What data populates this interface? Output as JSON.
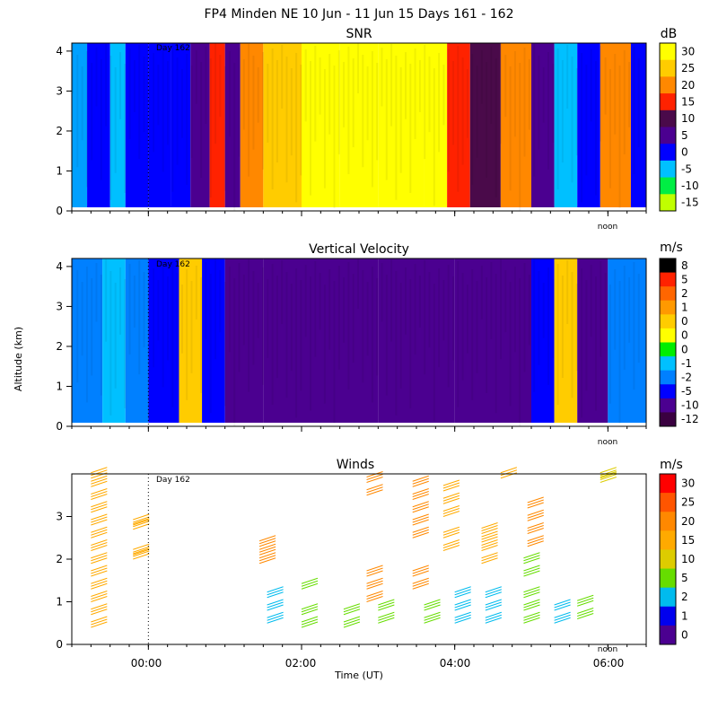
{
  "figure": {
    "title": "FP4 Minden NE  10 Jun - 11 Jun 15 Days 161 - 162",
    "ylabel": "Altitude (km)",
    "xlabel": "Time (UT)",
    "x_ticks": [
      "00:00",
      "02:00",
      "04:00",
      "06:00"
    ],
    "day_marker": "Day 162",
    "noon_label": "noon"
  },
  "chart_data": [
    {
      "type": "heatmap",
      "title": "SNR",
      "unit": "dB",
      "ylim": [
        0,
        4.2
      ],
      "y_ticks": [
        "0",
        "1",
        "2",
        "3",
        "4"
      ],
      "colorbar": {
        "labels": [
          "30",
          "25",
          "20",
          "15",
          "10",
          "5",
          "0",
          "-5",
          "-10",
          "-15"
        ],
        "colors": [
          "#ffff00",
          "#ffcc00",
          "#ff8800",
          "#ff2200",
          "#4a0a4a",
          "#4b0090",
          "#0000ff",
          "#00c0ff",
          "#00ee44",
          "#c0ff00"
        ]
      },
      "bands": [
        {
          "t": -1.0,
          "c": "#00a0ff"
        },
        {
          "t": -0.8,
          "c": "#0000ff"
        },
        {
          "t": -0.5,
          "c": "#00c0ff"
        },
        {
          "t": -0.3,
          "c": "#0000ff"
        },
        {
          "t": 0.0,
          "c": "#0000ff"
        },
        {
          "t": 0.3,
          "c": "#0000ff"
        },
        {
          "t": 0.55,
          "c": "#4b0090"
        },
        {
          "t": 0.8,
          "c": "#ff2200"
        },
        {
          "t": 1.0,
          "c": "#4b0090"
        },
        {
          "t": 1.2,
          "c": "#ff8800"
        },
        {
          "t": 1.5,
          "c": "#ffcc00"
        },
        {
          "t": 2.0,
          "c": "#ffff00"
        },
        {
          "t": 2.5,
          "c": "#ffff00"
        },
        {
          "t": 3.0,
          "c": "#ffff00"
        },
        {
          "t": 3.6,
          "c": "#ffff00"
        },
        {
          "t": 3.9,
          "c": "#ff2200"
        },
        {
          "t": 4.2,
          "c": "#4a0a4a"
        },
        {
          "t": 4.6,
          "c": "#ff8800"
        },
        {
          "t": 5.0,
          "c": "#4b0090"
        },
        {
          "t": 5.3,
          "c": "#00c0ff"
        },
        {
          "t": 5.6,
          "c": "#0000ff"
        },
        {
          "t": 5.9,
          "c": "#ff8800"
        },
        {
          "t": 6.3,
          "c": "#0000ff"
        }
      ]
    },
    {
      "type": "heatmap",
      "title": "Vertical Velocity",
      "unit": "m/s",
      "ylim": [
        0,
        4.2
      ],
      "y_ticks": [
        "0",
        "1",
        "2",
        "3",
        "4"
      ],
      "colorbar": {
        "labels": [
          "8",
          "5",
          "2",
          "1",
          "0",
          "0",
          "0",
          "-1",
          "-2",
          "-5",
          "-10",
          "-12"
        ],
        "colors": [
          "#000000",
          "#ff2200",
          "#ff6600",
          "#ff9900",
          "#ffcc00",
          "#ffff00",
          "#00ee00",
          "#00c0ff",
          "#0080ff",
          "#0000ff",
          "#4b0090",
          "#3a0040"
        ]
      },
      "bands": [
        {
          "t": -1.0,
          "c": "#0080ff"
        },
        {
          "t": -0.6,
          "c": "#00c0ff"
        },
        {
          "t": -0.3,
          "c": "#0080ff"
        },
        {
          "t": 0.0,
          "c": "#0000ff"
        },
        {
          "t": 0.4,
          "c": "#ffcc00"
        },
        {
          "t": 0.7,
          "c": "#0000ff"
        },
        {
          "t": 1.0,
          "c": "#4b0090"
        },
        {
          "t": 1.5,
          "c": "#4b0090"
        },
        {
          "t": 2.0,
          "c": "#4b0090"
        },
        {
          "t": 3.0,
          "c": "#4b0090"
        },
        {
          "t": 4.0,
          "c": "#4b0090"
        },
        {
          "t": 5.0,
          "c": "#0000ff"
        },
        {
          "t": 5.3,
          "c": "#ffcc00"
        },
        {
          "t": 5.6,
          "c": "#4b0090"
        },
        {
          "t": 6.0,
          "c": "#0080ff"
        }
      ]
    },
    {
      "type": "scatter",
      "title": "Winds",
      "unit": "m/s",
      "ylim": [
        0,
        4.0
      ],
      "y_ticks": [
        "0",
        "1",
        "2",
        "3"
      ],
      "colorbar": {
        "labels": [
          "30",
          "25",
          "20",
          "15",
          "10",
          "5",
          "2",
          "1",
          "0"
        ],
        "colors": [
          "#ff0000",
          "#ff5500",
          "#ff8800",
          "#ffaa00",
          "#ddcc00",
          "#66dd00",
          "#00bbee",
          "#0000ee",
          "#4b0090"
        ]
      },
      "barbs": [
        {
          "t": -0.75,
          "alts": [
            0.4,
            0.7,
            1.0,
            1.3,
            1.6,
            1.9,
            2.2,
            2.5,
            2.8,
            3.1,
            3.4,
            3.7,
            3.9
          ],
          "c": "#ffaa00"
        },
        {
          "t": -0.2,
          "alts": [
            2.0,
            2.1,
            2.7,
            2.8
          ],
          "c": "#ffaa00"
        },
        {
          "t": 1.45,
          "alts": [
            1.9,
            2.1,
            2.3
          ],
          "c": "#ff8800"
        },
        {
          "t": 1.55,
          "alts": [
            0.5,
            0.8,
            1.1
          ],
          "c": "#00bbee"
        },
        {
          "t": 2.0,
          "alts": [
            0.4,
            0.7,
            1.3
          ],
          "c": "#66dd00"
        },
        {
          "t": 2.55,
          "alts": [
            0.4,
            0.7
          ],
          "c": "#66dd00"
        },
        {
          "t": 2.85,
          "alts": [
            1.0,
            1.3,
            1.6,
            3.5,
            3.8
          ],
          "c": "#ff8800"
        },
        {
          "t": 3.0,
          "alts": [
            0.5,
            0.8
          ],
          "c": "#66dd00"
        },
        {
          "t": 3.45,
          "alts": [
            1.3,
            1.6,
            2.5,
            2.8,
            3.1,
            3.4,
            3.7
          ],
          "c": "#ff8800"
        },
        {
          "t": 3.6,
          "alts": [
            0.5,
            0.8
          ],
          "c": "#66dd00"
        },
        {
          "t": 3.85,
          "alts": [
            2.2,
            2.5,
            3.0,
            3.3,
            3.6
          ],
          "c": "#ffaa00"
        },
        {
          "t": 4.0,
          "alts": [
            0.5,
            0.8,
            1.1
          ],
          "c": "#00bbee"
        },
        {
          "t": 4.35,
          "alts": [
            1.9,
            2.2,
            2.4,
            2.6
          ],
          "c": "#ffaa00"
        },
        {
          "t": 4.4,
          "alts": [
            0.5,
            0.8,
            1.1
          ],
          "c": "#00bbee"
        },
        {
          "t": 4.6,
          "alts": [
            3.9
          ],
          "c": "#ffaa00"
        },
        {
          "t": 4.9,
          "alts": [
            0.5,
            0.8,
            1.1,
            1.6,
            1.9
          ],
          "c": "#66dd00"
        },
        {
          "t": 4.95,
          "alts": [
            2.3,
            2.6,
            2.9,
            3.2
          ],
          "c": "#ff8800"
        },
        {
          "t": 5.3,
          "alts": [
            0.5,
            0.8
          ],
          "c": "#00bbee"
        },
        {
          "t": 5.6,
          "alts": [
            0.6,
            0.9
          ],
          "c": "#66dd00"
        },
        {
          "t": 5.9,
          "alts": [
            3.8,
            3.9
          ],
          "c": "#ddcc00"
        }
      ]
    }
  ]
}
